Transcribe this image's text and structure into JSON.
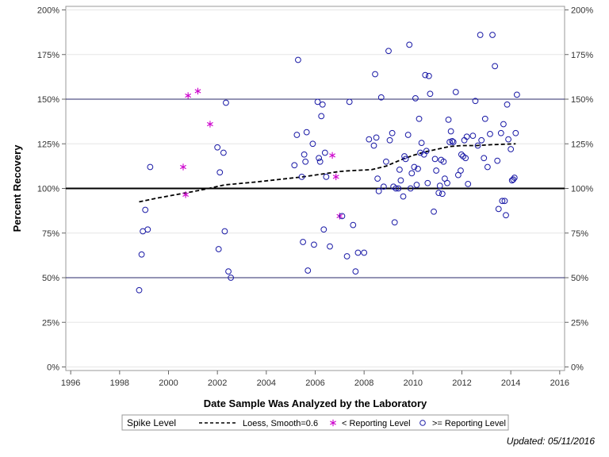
{
  "chart_data": {
    "type": "scatter",
    "xlabel": "Date Sample Was Analyzed by the Laboratory",
    "ylabel": "Percent Recovery",
    "xlim": [
      1995.8,
      2016.2
    ],
    "ylim": [
      -2,
      202
    ],
    "x_ticks": [
      1996,
      1998,
      2000,
      2002,
      2004,
      2006,
      2008,
      2010,
      2012,
      2014,
      2016
    ],
    "y_ticks": [
      0,
      25,
      50,
      75,
      100,
      125,
      150,
      175,
      200
    ],
    "y_tick_suffix": "%",
    "right_axis_mirrors_left": true,
    "reference_lines": [
      {
        "y": 100,
        "style": "bold"
      },
      {
        "y": 50,
        "style": "thin"
      },
      {
        "y": 150,
        "style": "thin"
      }
    ],
    "grid": "horizontal",
    "legend": {
      "position": "bottom",
      "title": "Spike Level",
      "items": [
        {
          "label": "Loess, Smooth=0.6",
          "symbol": "dashed-line"
        },
        {
          "label": "< Reporting Level",
          "symbol": "star",
          "color": "#cc00cc"
        },
        {
          "label": ">= Reporting Level",
          "symbol": "circle",
          "color": "#1a1aa6"
        }
      ]
    },
    "series": [
      {
        "name": "Loess, Smooth=0.6",
        "kind": "line",
        "color": "#000000",
        "points": [
          [
            1998.8,
            92.5
          ],
          [
            1999.5,
            94.5
          ],
          [
            2000.3,
            96.5
          ],
          [
            2001.3,
            99
          ],
          [
            2002.3,
            102
          ],
          [
            2003.5,
            103.5
          ],
          [
            2004.5,
            105
          ],
          [
            2005.5,
            106.5
          ],
          [
            2006.5,
            108.5
          ],
          [
            2007.0,
            109.5
          ],
          [
            2007.5,
            110
          ],
          [
            2008.3,
            110.5
          ],
          [
            2008.9,
            112.5
          ],
          [
            2009.5,
            116
          ],
          [
            2010.0,
            118.5
          ],
          [
            2010.5,
            120.5
          ],
          [
            2011.0,
            122
          ],
          [
            2011.5,
            123.5
          ],
          [
            2012.0,
            124
          ],
          [
            2012.6,
            124
          ],
          [
            2013.2,
            124.5
          ],
          [
            2013.8,
            124.8
          ],
          [
            2014.2,
            125
          ]
        ]
      },
      {
        "name": "< Reporting Level",
        "kind": "star",
        "color": "#cc00cc",
        "points": [
          [
            2000.6,
            112
          ],
          [
            2000.7,
            96.5
          ],
          [
            2000.8,
            152
          ],
          [
            2001.2,
            154.5
          ],
          [
            2001.7,
            136
          ],
          [
            2006.7,
            118.5
          ],
          [
            2006.85,
            106.5
          ],
          [
            2007.0,
            84.5
          ]
        ]
      },
      {
        "name": ">= Reporting Level",
        "kind": "circle",
        "color": "#1a1aa6",
        "points": [
          [
            1998.8,
            43
          ],
          [
            1998.9,
            63
          ],
          [
            1998.95,
            76
          ],
          [
            1999.05,
            88
          ],
          [
            1999.15,
            77
          ],
          [
            1999.25,
            112
          ],
          [
            2002.0,
            123
          ],
          [
            2002.05,
            66
          ],
          [
            2002.1,
            109
          ],
          [
            2002.25,
            120
          ],
          [
            2002.3,
            76
          ],
          [
            2002.35,
            148
          ],
          [
            2002.45,
            53.5
          ],
          [
            2002.55,
            50
          ],
          [
            2005.15,
            113
          ],
          [
            2005.25,
            130
          ],
          [
            2005.3,
            172
          ],
          [
            2005.45,
            106.5
          ],
          [
            2005.5,
            70
          ],
          [
            2005.55,
            119
          ],
          [
            2005.6,
            115
          ],
          [
            2005.65,
            131.5
          ],
          [
            2005.7,
            54
          ],
          [
            2005.9,
            125
          ],
          [
            2005.95,
            68.5
          ],
          [
            2006.1,
            148.5
          ],
          [
            2006.15,
            117
          ],
          [
            2006.2,
            115
          ],
          [
            2006.25,
            140.5
          ],
          [
            2006.3,
            147
          ],
          [
            2006.35,
            77
          ],
          [
            2006.4,
            120
          ],
          [
            2006.45,
            106.5
          ],
          [
            2006.6,
            67.5
          ],
          [
            2007.1,
            84.5
          ],
          [
            2007.3,
            62
          ],
          [
            2007.4,
            148.5
          ],
          [
            2007.55,
            79.5
          ],
          [
            2007.65,
            53.5
          ],
          [
            2007.75,
            64
          ],
          [
            2008.0,
            64
          ],
          [
            2008.2,
            127.5
          ],
          [
            2008.4,
            124
          ],
          [
            2008.45,
            164
          ],
          [
            2008.5,
            128.5
          ],
          [
            2008.55,
            105.5
          ],
          [
            2008.6,
            98.5
          ],
          [
            2008.7,
            151
          ],
          [
            2008.8,
            101
          ],
          [
            2008.9,
            115
          ],
          [
            2009.0,
            177
          ],
          [
            2009.05,
            127
          ],
          [
            2009.15,
            131
          ],
          [
            2009.2,
            101
          ],
          [
            2009.25,
            81
          ],
          [
            2009.3,
            100
          ],
          [
            2009.4,
            100
          ],
          [
            2009.45,
            110.5
          ],
          [
            2009.5,
            104.5
          ],
          [
            2009.6,
            95.5
          ],
          [
            2009.65,
            118
          ],
          [
            2009.7,
            116.5
          ],
          [
            2009.8,
            130
          ],
          [
            2009.85,
            180.5
          ],
          [
            2009.9,
            100
          ],
          [
            2009.95,
            108.5
          ],
          [
            2010.05,
            112
          ],
          [
            2010.1,
            150.5
          ],
          [
            2010.15,
            102
          ],
          [
            2010.2,
            111
          ],
          [
            2010.25,
            139
          ],
          [
            2010.3,
            120
          ],
          [
            2010.35,
            125.5
          ],
          [
            2010.45,
            119
          ],
          [
            2010.5,
            163.5
          ],
          [
            2010.55,
            121
          ],
          [
            2010.6,
            103
          ],
          [
            2010.65,
            163
          ],
          [
            2010.7,
            153
          ],
          [
            2010.85,
            87
          ],
          [
            2010.9,
            116.5
          ],
          [
            2010.95,
            110
          ],
          [
            2011.05,
            97.5
          ],
          [
            2011.1,
            101.5
          ],
          [
            2011.15,
            116
          ],
          [
            2011.2,
            97
          ],
          [
            2011.25,
            115
          ],
          [
            2011.3,
            105.5
          ],
          [
            2011.4,
            103
          ],
          [
            2011.45,
            138.5
          ],
          [
            2011.5,
            126
          ],
          [
            2011.55,
            132
          ],
          [
            2011.6,
            126.5
          ],
          [
            2011.65,
            126
          ],
          [
            2011.75,
            154
          ],
          [
            2011.85,
            107.5
          ],
          [
            2011.95,
            110
          ],
          [
            2011.98,
            119
          ],
          [
            2012.05,
            118
          ],
          [
            2012.1,
            127
          ],
          [
            2012.15,
            117
          ],
          [
            2012.2,
            129
          ],
          [
            2012.25,
            102.5
          ],
          [
            2012.45,
            129.5
          ],
          [
            2012.55,
            149
          ],
          [
            2012.65,
            124
          ],
          [
            2012.75,
            186
          ],
          [
            2012.8,
            127
          ],
          [
            2012.9,
            117
          ],
          [
            2012.95,
            139
          ],
          [
            2013.05,
            112
          ],
          [
            2013.15,
            130.5
          ],
          [
            2013.25,
            186
          ],
          [
            2013.35,
            168.5
          ],
          [
            2013.45,
            115.5
          ],
          [
            2013.5,
            88.5
          ],
          [
            2013.6,
            131
          ],
          [
            2013.65,
            93
          ],
          [
            2013.7,
            136
          ],
          [
            2013.75,
            93
          ],
          [
            2013.8,
            85
          ],
          [
            2013.85,
            147
          ],
          [
            2013.9,
            127.5
          ],
          [
            2014.0,
            122
          ],
          [
            2014.05,
            104.5
          ],
          [
            2014.1,
            105
          ],
          [
            2014.15,
            106
          ],
          [
            2014.2,
            131
          ],
          [
            2014.25,
            152.5
          ]
        ]
      }
    ]
  },
  "footnote": "Updated: 05/11/2016"
}
